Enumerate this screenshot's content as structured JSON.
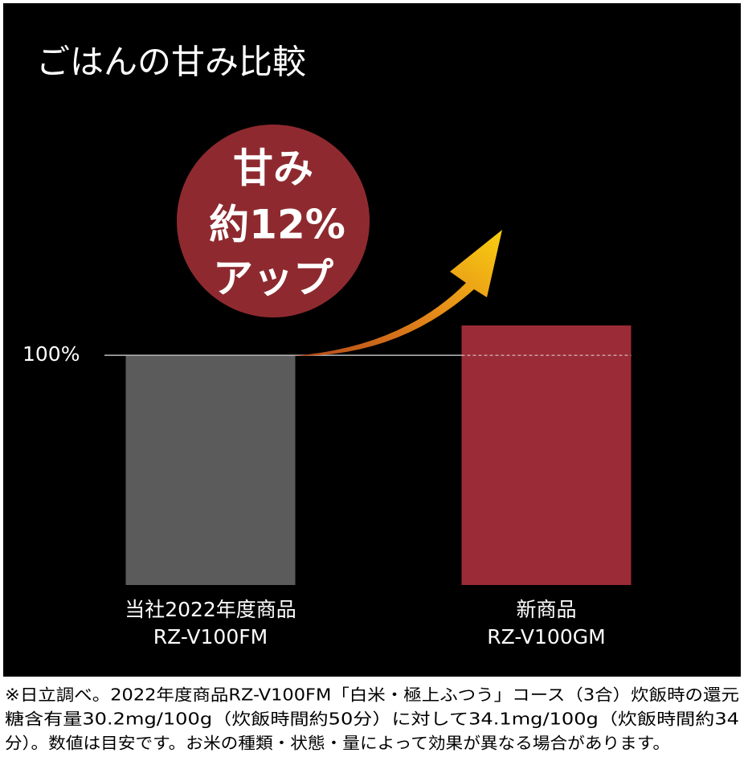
{
  "chart_data": {
    "type": "bar",
    "title": "ごはんの甘み比較",
    "annotation": [
      "甘み",
      "約12%",
      "アップ"
    ],
    "categories": [
      [
        "当社2022年度商品",
        "RZ-V100FM"
      ],
      [
        "新商品",
        "RZ-V100GM"
      ]
    ],
    "values": [
      100,
      113
    ],
    "colors": [
      "#5b5b5b",
      "#9b2b36"
    ],
    "ylim": [
      0,
      120
    ],
    "yticks": [
      {
        "value": 100,
        "label": "100%"
      }
    ]
  },
  "footnote": [
    "※日立調べ。2022年度商品RZ-V100FM「白米・極上ふつう」コース（3合）炊飯時の還元",
    "糖含有量30.2mg/100g（炊飯時間約50分）に対して34.1mg/100g（炊飯時間約34",
    "分）。数値は目安です。お米の種類・状態・量によって効果が異なる場合があります。"
  ]
}
